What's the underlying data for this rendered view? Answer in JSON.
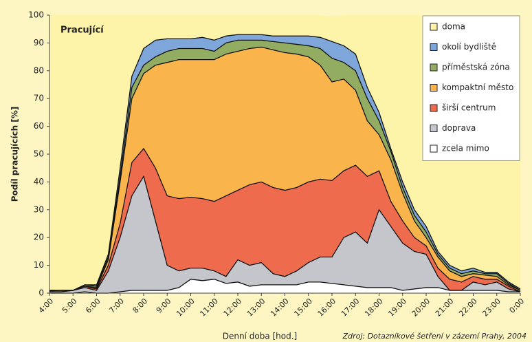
{
  "chart_data": {
    "type": "stacked-area",
    "title": "Pracující",
    "x_label": "Denní doba [hod.]",
    "y_label": "Podíl pracujících [%]",
    "source": "Zdroj: Dotazníkové šetření v zázemí Prahy, 2004",
    "x": [
      4,
      4.5,
      5,
      5.5,
      6,
      6.5,
      7,
      7.5,
      8,
      8.5,
      9,
      9.5,
      10,
      10.5,
      11,
      11.5,
      12,
      12.5,
      13,
      13.5,
      14,
      14.5,
      15,
      15.5,
      16,
      16.5,
      17,
      17.5,
      18,
      18.5,
      19,
      19.5,
      20,
      20.5,
      21,
      21.5,
      22,
      22.5,
      23,
      23.5,
      24
    ],
    "series": [
      {
        "name": "zcela mimo",
        "color": "#ffffff",
        "values": [
          0,
          0,
          0,
          0.5,
          0,
          0,
          0.5,
          1,
          1,
          1,
          1,
          2,
          5,
          4.5,
          5,
          3.5,
          4,
          2.5,
          3,
          3,
          3,
          3,
          4,
          4,
          3.5,
          3,
          2.5,
          2,
          2,
          2,
          1,
          1.5,
          2,
          2,
          1,
          1,
          1,
          1,
          1,
          0.5,
          0.5
        ]
      },
      {
        "name": "doprava",
        "color": "#c5c6cb",
        "values": [
          0.5,
          0.5,
          1,
          1.5,
          1,
          8,
          19.5,
          34,
          41,
          25,
          9,
          6,
          4,
          4.5,
          3,
          2.5,
          8,
          7.5,
          8,
          4,
          3,
          5,
          7,
          9,
          9.5,
          17,
          19.5,
          16,
          28,
          22,
          17,
          13.5,
          12,
          4,
          0,
          0,
          3,
          2,
          3,
          1,
          0
        ]
      },
      {
        "name": "širší centrum",
        "color": "#ef6b4e",
        "values": [
          0,
          0,
          0,
          0.5,
          0.5,
          2,
          5,
          12,
          10,
          19,
          25,
          26,
          25.5,
          25,
          25,
          29,
          25,
          29,
          29,
          31,
          31,
          30,
          29,
          28,
          27.5,
          24,
          24,
          24,
          14,
          9,
          8,
          5,
          3,
          3,
          4,
          3,
          2,
          2,
          1,
          1,
          0
        ]
      },
      {
        "name": "kompaktní město",
        "color": "#f9b54c",
        "values": [
          0.3,
          0.5,
          0,
          0,
          0.5,
          2,
          15,
          23,
          27,
          37,
          48,
          50,
          49.5,
          50,
          51,
          51,
          50,
          49,
          48.5,
          49.5,
          49.5,
          48,
          45,
          41,
          35.5,
          33,
          27,
          20,
          13,
          15,
          10,
          6,
          3,
          4,
          3,
          2,
          1,
          1.5,
          1,
          0.5,
          0.5
        ]
      },
      {
        "name": "příměstská zóna",
        "color": "#92ad62",
        "values": [
          0.2,
          0,
          0,
          0.5,
          0.5,
          1,
          2,
          4,
          3,
          3,
          4,
          4,
          4,
          4,
          3,
          4,
          4,
          3,
          2.5,
          3,
          3.5,
          3.5,
          4,
          6,
          8.5,
          6,
          7,
          8,
          5,
          3,
          2,
          2,
          2,
          1,
          1,
          1,
          1,
          0.5,
          1,
          0.5,
          0
        ]
      },
      {
        "name": "okolí bydliště",
        "color": "#7fa6da",
        "values": [
          0,
          0,
          0,
          0,
          0.5,
          1,
          3,
          4,
          6,
          6,
          4.5,
          3.5,
          3.5,
          4,
          4,
          2.5,
          2,
          2,
          2,
          2,
          2.5,
          3,
          3.5,
          4,
          6,
          6,
          6,
          4,
          3,
          1,
          2,
          2,
          2,
          1,
          1,
          1,
          1,
          0.5,
          0.5,
          0.5,
          0.5
        ]
      },
      {
        "name": "doma",
        "color": "#fdf3a9",
        "values": [
          99,
          99,
          99,
          97,
          97,
          86,
          55,
          22,
          12,
          9,
          8.5,
          8.5,
          8.5,
          8,
          9,
          7.5,
          7,
          7,
          7,
          7.5,
          7.5,
          7.5,
          7.5,
          8,
          9,
          11,
          14,
          26,
          35,
          48,
          60,
          70,
          76,
          85,
          90,
          92,
          91,
          92.5,
          92.5,
          96,
          98.5
        ]
      }
    ],
    "xlim": [
      4,
      24
    ],
    "ylim": [
      0,
      100
    ],
    "xticks": [
      {
        "value": 4,
        "label": "4:00"
      },
      {
        "value": 5,
        "label": "5:00"
      },
      {
        "value": 6,
        "label": "6:00"
      },
      {
        "value": 7,
        "label": "7:00"
      },
      {
        "value": 8,
        "label": "8:00"
      },
      {
        "value": 9,
        "label": "9:00"
      },
      {
        "value": 10,
        "label": "10:00"
      },
      {
        "value": 11,
        "label": "11:00"
      },
      {
        "value": 12,
        "label": "12:00"
      },
      {
        "value": 13,
        "label": "13:00"
      },
      {
        "value": 14,
        "label": "14:00"
      },
      {
        "value": 15,
        "label": "15:00"
      },
      {
        "value": 16,
        "label": "16:00"
      },
      {
        "value": 17,
        "label": "17:00"
      },
      {
        "value": 18,
        "label": "18:00"
      },
      {
        "value": 19,
        "label": "19:00"
      },
      {
        "value": 20,
        "label": "20:00"
      },
      {
        "value": 21,
        "label": "21:00"
      },
      {
        "value": 22,
        "label": "22:00"
      },
      {
        "value": 23,
        "label": "23:00"
      },
      {
        "value": 24,
        "label": "0:00"
      }
    ],
    "yticks": [
      0,
      10,
      20,
      30,
      40,
      50,
      60,
      70,
      80,
      90,
      100
    ],
    "grid": false,
    "legend": "top-right"
  }
}
